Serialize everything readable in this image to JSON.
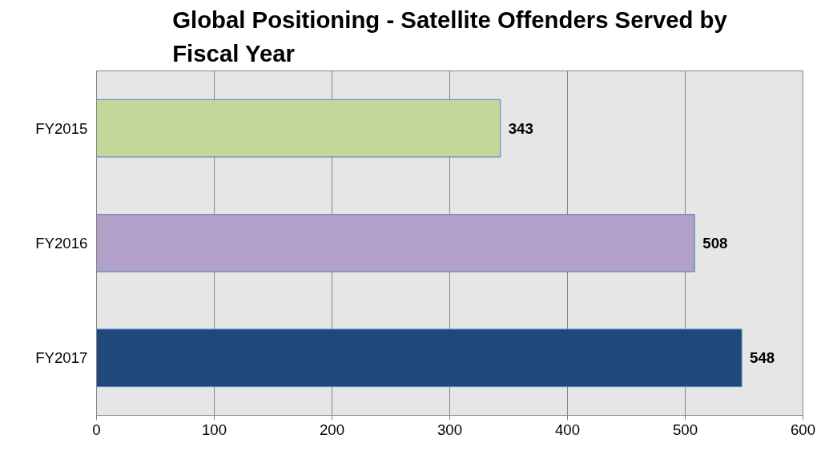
{
  "chart_data": {
    "type": "bar",
    "orientation": "horizontal",
    "title": "Global Positioning - Satellite Offenders Served by Fiscal Year",
    "categories": [
      "FY2015",
      "FY2016",
      "FY2017"
    ],
    "values": [
      343,
      508,
      548
    ],
    "colors": [
      "#c4d79b",
      "#b1a0c7",
      "#1f497d"
    ],
    "xlim": [
      0,
      600
    ],
    "xticks": [
      0,
      100,
      200,
      300,
      400,
      500,
      600
    ],
    "grid": "x",
    "data_labels": true
  }
}
